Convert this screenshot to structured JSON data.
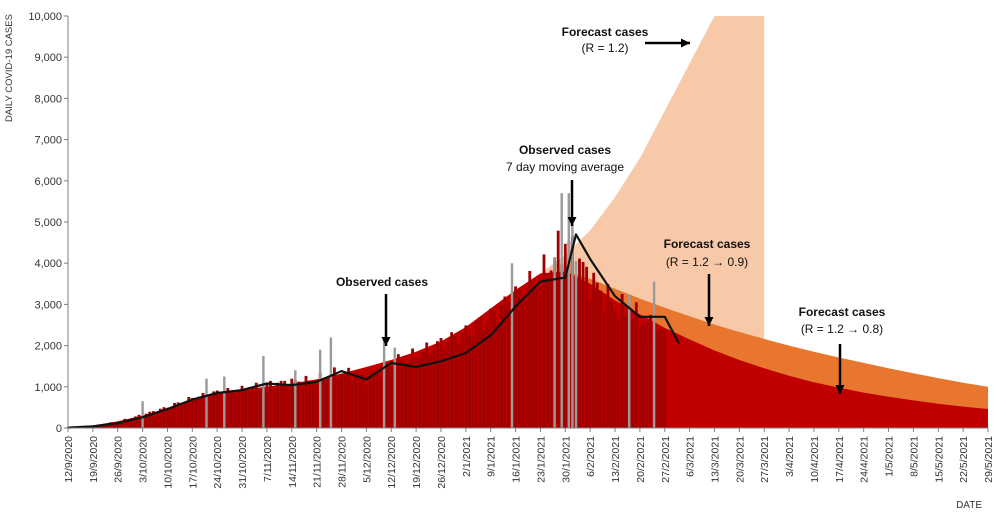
{
  "chart_data": {
    "type": "area",
    "title": "",
    "xlabel": "DATE",
    "ylabel": "DAILY COVID-19 CASES",
    "ylim": [
      0,
      10000
    ],
    "yticks": [
      "0",
      "1,000",
      "2,000",
      "3,000",
      "4,000",
      "5,000",
      "6,000",
      "7,000",
      "8,000",
      "9,000",
      "10,000"
    ],
    "x_tick_labels": [
      "12/9/2020",
      "19/9/2020",
      "26/9/2020",
      "3/10/2020",
      "10/10/2020",
      "17/10/2020",
      "24/10/2020",
      "31/10/2020",
      "7/11/2020",
      "14/11/2020",
      "21/11/2020",
      "28/11/2020",
      "5/12/2020",
      "12/12/2020",
      "19/12/2020",
      "26/12/2020",
      "2/1/2021",
      "9/1/2021",
      "16/1/2021",
      "23/1/2021",
      "30/1/2021",
      "6/2/2021",
      "13/2/2021",
      "20/2/2021",
      "27/2/2021",
      "6/3/2021",
      "13/3/2021",
      "20/3/2021",
      "27/3/2021",
      "3/4/2021",
      "10/4/2021",
      "17/4/2021",
      "24/4/2021",
      "1/5/2021",
      "8/5/2021",
      "15/5/2021",
      "22/5/2021",
      "29/5/2021"
    ],
    "grid": false,
    "legend": "none",
    "colors": {
      "forecast_r12": "#f8c9a8",
      "forecast_r12_09": "#e9762f",
      "forecast_r12_08": "#c00000",
      "observed_bars": "#a00000",
      "observed_spikes": "#9a9a9a",
      "moving_average": "#111111"
    },
    "series": [
      {
        "type": "area",
        "x": [
          "12/9/2020",
          "19/9/2020",
          "26/9/2020",
          "3/10/2020",
          "10/10/2020",
          "17/10/2020",
          "24/10/2020",
          "31/10/2020",
          "7/11/2020",
          "14/11/2020",
          "21/11/2020",
          "28/11/2020",
          "5/12/2020",
          "12/12/2020",
          "19/12/2020",
          "26/12/2020",
          "2/1/2021",
          "9/1/2021",
          "16/1/2021",
          "23/1/2021",
          "30/1/2021",
          "6/2/2021",
          "13/2/2021",
          "20/2/2021",
          "27/2/2021",
          "6/3/2021",
          "13/3/2021",
          "20/3/2021",
          "27/3/2021"
        ],
        "y": [
          30,
          60,
          160,
          300,
          480,
          700,
          850,
          930,
          1000,
          1080,
          1180,
          1320,
          1480,
          1650,
          1850,
          2100,
          2450,
          2900,
          3350,
          3750,
          4200,
          4800,
          5600,
          6550,
          7700,
          8850,
          10000,
          10000,
          10000
        ]
      },
      {
        "type": "area",
        "x": [
          "12/9/2020",
          "19/9/2020",
          "26/9/2020",
          "3/10/2020",
          "10/10/2020",
          "17/10/2020",
          "24/10/2020",
          "31/10/2020",
          "7/11/2020",
          "14/11/2020",
          "21/11/2020",
          "28/11/2020",
          "5/12/2020",
          "12/12/2020",
          "19/12/2020",
          "26/12/2020",
          "2/1/2021",
          "9/1/2021",
          "16/1/2021",
          "23/1/2021",
          "30/1/2021",
          "6/2/2021",
          "13/2/2021",
          "20/2/2021",
          "27/2/2021",
          "6/3/2021",
          "13/3/2021",
          "20/3/2021",
          "27/3/2021",
          "3/4/2021",
          "10/4/2021",
          "17/4/2021",
          "24/4/2021",
          "1/5/2021",
          "8/5/2021",
          "15/5/2021",
          "22/5/2021",
          "29/5/2021"
        ],
        "y": [
          30,
          60,
          160,
          300,
          480,
          700,
          850,
          930,
          1000,
          1080,
          1180,
          1320,
          1480,
          1650,
          1850,
          2100,
          2450,
          2900,
          3350,
          3750,
          3800,
          3620,
          3380,
          3140,
          2920,
          2710,
          2510,
          2330,
          2160,
          2000,
          1850,
          1710,
          1580,
          1450,
          1330,
          1210,
          1100,
          1000
        ]
      },
      {
        "type": "area",
        "x": [
          "12/9/2020",
          "19/9/2020",
          "26/9/2020",
          "3/10/2020",
          "10/10/2020",
          "17/10/2020",
          "24/10/2020",
          "31/10/2020",
          "7/11/2020",
          "14/11/2020",
          "21/11/2020",
          "28/11/2020",
          "5/12/2020",
          "12/12/2020",
          "19/12/2020",
          "26/12/2020",
          "2/1/2021",
          "9/1/2021",
          "16/1/2021",
          "23/1/2021",
          "30/1/2021",
          "6/2/2021",
          "13/2/2021",
          "20/2/2021",
          "27/2/2021",
          "6/3/2021",
          "13/3/2021",
          "20/3/2021",
          "27/3/2021",
          "3/4/2021",
          "10/4/2021",
          "17/4/2021",
          "24/4/2021",
          "1/5/2021",
          "8/5/2021",
          "15/5/2021",
          "22/5/2021",
          "29/5/2021"
        ],
        "y": [
          30,
          60,
          160,
          300,
          480,
          700,
          850,
          930,
          1000,
          1080,
          1180,
          1320,
          1480,
          1650,
          1850,
          2100,
          2450,
          2900,
          3350,
          3750,
          3800,
          3500,
          3100,
          2760,
          2430,
          2150,
          1880,
          1650,
          1450,
          1270,
          1110,
          980,
          860,
          760,
          670,
          590,
          520,
          460
        ]
      },
      {
        "type": "bar",
        "x": [
          "12/9/2020",
          "19/9/2020",
          "26/9/2020",
          "3/10/2020",
          "10/10/2020",
          "17/10/2020",
          "24/10/2020",
          "31/10/2020",
          "7/11/2020",
          "14/11/2020",
          "21/11/2020",
          "28/11/2020",
          "5/12/2020",
          "12/12/2020",
          "19/12/2020",
          "26/12/2020",
          "2/1/2021",
          "9/1/2021",
          "16/1/2021",
          "23/1/2021",
          "30/1/2021",
          "6/2/2021",
          "13/2/2021",
          "20/2/2021",
          "27/2/2021"
        ],
        "y": [
          20,
          50,
          150,
          320,
          500,
          720,
          860,
          920,
          1050,
          1120,
          1150,
          1350,
          1220,
          1550,
          1750,
          2050,
          2300,
          2700,
          3200,
          3600,
          4550,
          3600,
          2950,
          2650,
          2250
        ]
      },
      {
        "type": "bar",
        "x": [
          "3/10/2020",
          "21/10/2020",
          "26/10/2020",
          "6/11/2020",
          "15/11/2020",
          "22/11/2020",
          "25/11/2020",
          "10/12/2020",
          "13/12/2020",
          "15/1/2021",
          "27/1/2021",
          "29/1/2021",
          "31/1/2021",
          "1/2/2021",
          "2/2/2021",
          "17/2/2021",
          "24/2/2021"
        ],
        "y": [
          650,
          1200,
          1250,
          1750,
          1400,
          1900,
          2200,
          2200,
          1950,
          4000,
          4150,
          5700,
          5700,
          5050,
          4050,
          3250,
          3550
        ]
      },
      {
        "type": "line",
        "x": [
          "12/9/2020",
          "19/9/2020",
          "26/9/2020",
          "3/10/2020",
          "10/10/2020",
          "17/10/2020",
          "24/10/2020",
          "31/10/2020",
          "7/11/2020",
          "14/11/2020",
          "21/11/2020",
          "28/11/2020",
          "5/12/2020",
          "12/12/2020",
          "19/12/2020",
          "26/12/2020",
          "2/1/2021",
          "9/1/2021",
          "16/1/2021",
          "23/1/2021",
          "30/1/2021",
          "2/2/2021",
          "6/2/2021",
          "13/2/2021",
          "20/2/2021",
          "27/2/2021",
          "3/3/2021"
        ],
        "y": [
          10,
          40,
          120,
          260,
          460,
          690,
          850,
          920,
          1080,
          1040,
          1120,
          1380,
          1180,
          1580,
          1480,
          1620,
          1820,
          2250,
          2950,
          3550,
          3650,
          4700,
          4100,
          3200,
          2700,
          2700,
          2050
        ]
      }
    ],
    "annotations": [
      {
        "text": "Forecast cases",
        "bold": true
      },
      {
        "text": "(R = 1.2)",
        "bold": false
      },
      {
        "text": "Observed cases",
        "bold": true
      },
      {
        "text": "7 day moving average",
        "bold": false
      },
      {
        "text": "Forecast cases",
        "bold": true
      },
      {
        "text": "(R = 1.2 → 0.9)",
        "bold": false
      },
      {
        "text": "Observed cases",
        "bold": true
      },
      {
        "text": "Forecast cases",
        "bold": true
      },
      {
        "text": "(R = 1.2 → 0.8)",
        "bold": false
      }
    ]
  }
}
